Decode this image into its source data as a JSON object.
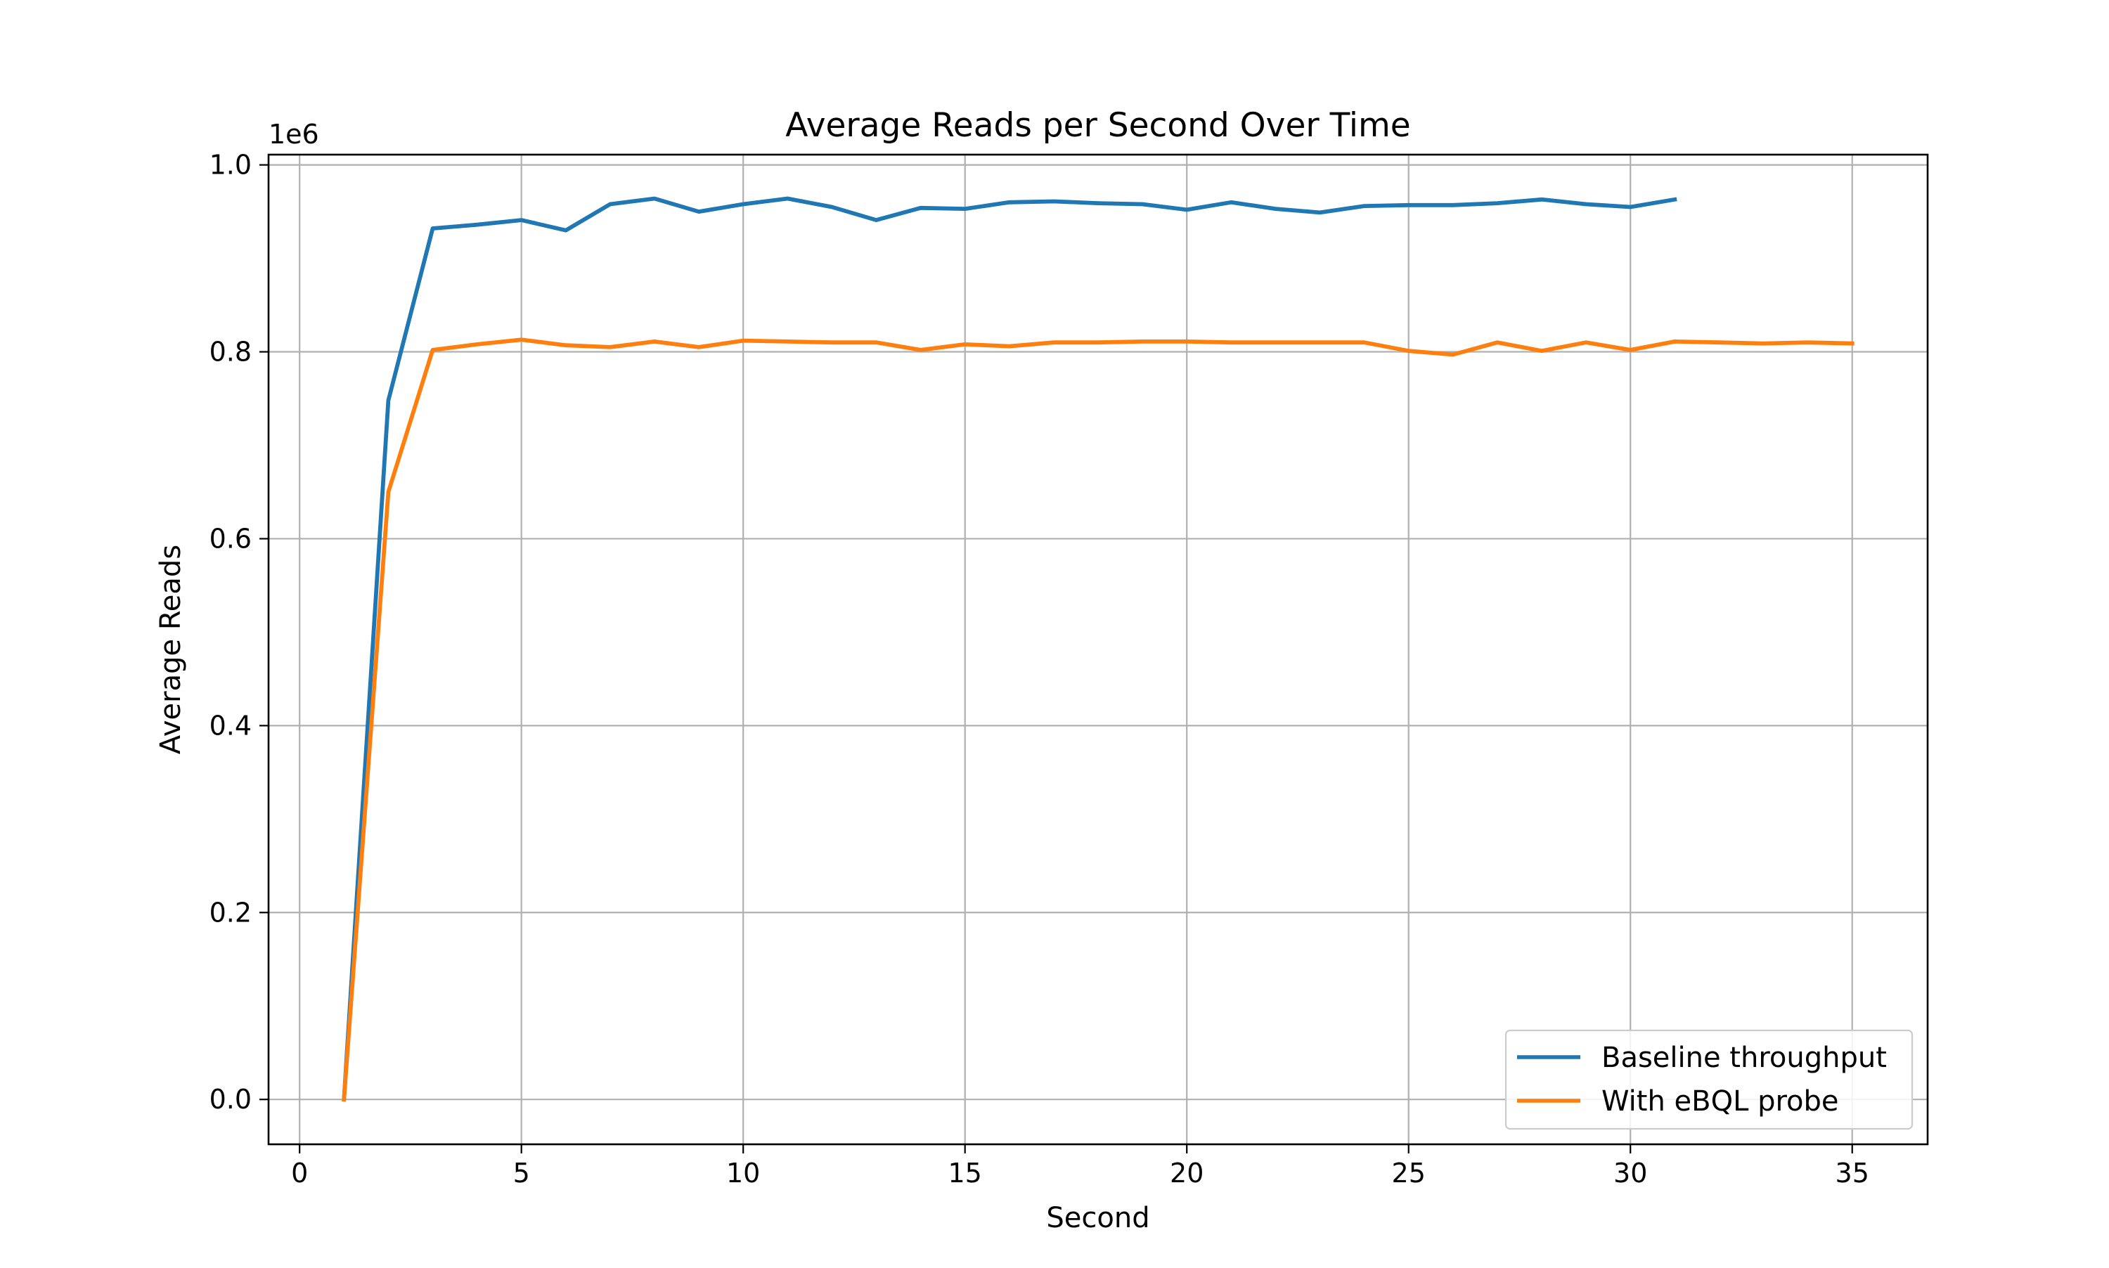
{
  "chart_data": {
    "type": "line",
    "title": "Average Reads per Second Over Time",
    "xlabel": "Second",
    "ylabel": "Average Reads",
    "y_offset_label": "1e6",
    "xlim": [
      -0.7,
      36.7
    ],
    "ylim": [
      -0.048,
      1.011
    ],
    "x_ticks": [
      0,
      5,
      10,
      15,
      20,
      25,
      30,
      35
    ],
    "x_tick_labels": [
      "0",
      "5",
      "10",
      "15",
      "20",
      "25",
      "30",
      "35"
    ],
    "y_ticks": [
      0.0,
      0.2,
      0.4,
      0.6,
      0.8,
      1.0
    ],
    "y_tick_labels": [
      "0.0",
      "0.2",
      "0.4",
      "0.6",
      "0.8",
      "1.0"
    ],
    "grid": true,
    "legend_position": "lower-right",
    "series": [
      {
        "name": "Baseline throughput",
        "color": "#1f77b4",
        "x": [
          1,
          2,
          3,
          4,
          5,
          6,
          7,
          8,
          9,
          10,
          11,
          12,
          13,
          14,
          15,
          16,
          17,
          18,
          19,
          20,
          21,
          22,
          23,
          24,
          25,
          26,
          27,
          28,
          29,
          30,
          31
        ],
        "y": [
          0.0,
          0.748,
          0.932,
          0.936,
          0.941,
          0.93,
          0.958,
          0.964,
          0.95,
          0.958,
          0.964,
          0.955,
          0.941,
          0.954,
          0.953,
          0.96,
          0.961,
          0.959,
          0.958,
          0.952,
          0.96,
          0.953,
          0.949,
          0.956,
          0.957,
          0.957,
          0.959,
          0.963,
          0.958,
          0.955,
          0.963
        ]
      },
      {
        "name": "With eBQL probe",
        "color": "#ff7f0e",
        "x": [
          1,
          2,
          3,
          4,
          5,
          6,
          7,
          8,
          9,
          10,
          11,
          12,
          13,
          14,
          15,
          16,
          17,
          18,
          19,
          20,
          21,
          22,
          23,
          24,
          25,
          26,
          27,
          28,
          29,
          30,
          31,
          32,
          33,
          34,
          35
        ],
        "y": [
          0.0,
          0.65,
          0.802,
          0.808,
          0.813,
          0.807,
          0.805,
          0.811,
          0.805,
          0.812,
          0.811,
          0.81,
          0.81,
          0.802,
          0.808,
          0.806,
          0.81,
          0.81,
          0.811,
          0.811,
          0.81,
          0.81,
          0.81,
          0.81,
          0.801,
          0.797,
          0.81,
          0.801,
          0.81,
          0.802,
          0.811,
          0.81,
          0.809,
          0.81,
          0.809
        ]
      }
    ]
  }
}
